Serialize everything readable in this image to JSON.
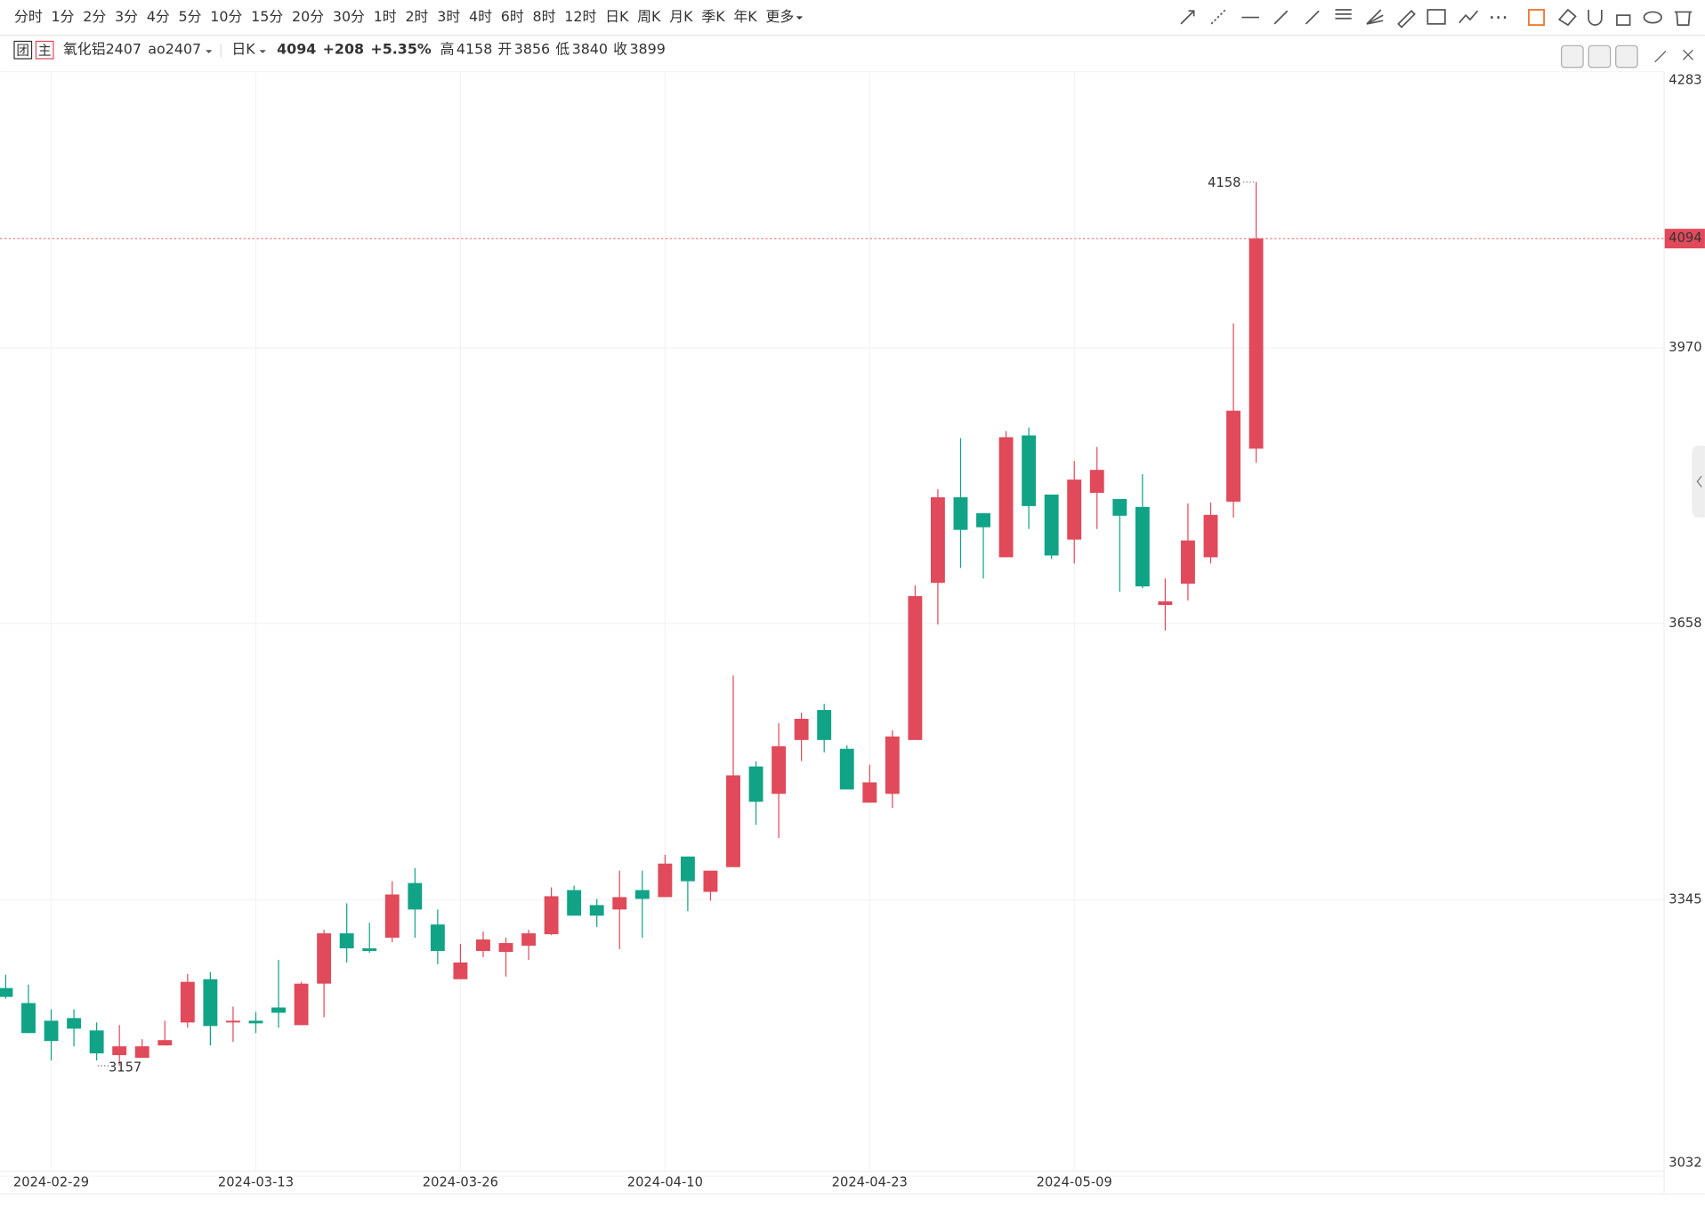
{
  "toolbar": {
    "periods": [
      "分时",
      "1分",
      "2分",
      "3分",
      "4分",
      "5分",
      "10分",
      "15分",
      "20分",
      "30分",
      "1时",
      "2时",
      "3时",
      "4时",
      "6时",
      "8时",
      "12时",
      "日K",
      "周K",
      "月K",
      "季K",
      "年K",
      "更多"
    ],
    "active": 17
  },
  "header": {
    "badges": [
      "团",
      "主"
    ],
    "name": "氧化铝2407",
    "code": "ao2407",
    "period": "日K",
    "change": "+208",
    "change_pct": "+5.35%",
    "high_label": "高",
    "open_label": "开",
    "low_label": "低",
    "prev_close_label": "收"
  },
  "chart_data": {
    "type": "candlestick",
    "categories": [
      null,
      null,
      "2024-02-29",
      null,
      null,
      null,
      null,
      null,
      null,
      null,
      null,
      "2024-03-13",
      null,
      null,
      null,
      null,
      null,
      null,
      null,
      null,
      "2024-03-26",
      null,
      null,
      null,
      null,
      null,
      null,
      null,
      null,
      "2024-04-10",
      null,
      null,
      null,
      null,
      null,
      null,
      null,
      null,
      "2024-04-23",
      null,
      null,
      null,
      null,
      null,
      null,
      null,
      null,
      "2024-05-09",
      null,
      null,
      null,
      null,
      null,
      null,
      null,
      null
    ],
    "open": [
      3245,
      3228,
      3208,
      3211,
      3197,
      3169,
      3166,
      3180,
      3206,
      3255,
      3206,
      3208,
      3223,
      3203,
      3250,
      3307,
      3290,
      3302,
      3364,
      3317,
      3255,
      3287,
      3286,
      3293,
      3306,
      3356,
      3339,
      3334,
      3356,
      3348,
      3394,
      3354,
      3382,
      3496,
      3465,
      3526,
      3560,
      3516,
      3455,
      3465,
      3526,
      3704,
      3801,
      3783,
      3733,
      3871,
      3804,
      3753,
      3806,
      3799,
      3790,
      3679,
      3703,
      3733,
      3796,
      3856
    ],
    "high": [
      3260,
      3249,
      3221,
      3221,
      3206,
      3203,
      3187,
      3208,
      3261,
      3263,
      3224,
      3218,
      3277,
      3252,
      3311,
      3341,
      3319,
      3366,
      3381,
      3334,
      3295,
      3309,
      3302,
      3311,
      3359,
      3361,
      3346,
      3378,
      3378,
      3396,
      3394,
      3378,
      3599,
      3502,
      3545,
      3557,
      3567,
      3520,
      3498,
      3537,
      3701,
      3810,
      3868,
      3783,
      3876,
      3880,
      3804,
      3842,
      3858,
      3799,
      3827,
      3709,
      3794,
      3795,
      3998,
      4158
    ],
    "low": [
      3233,
      3194,
      3163,
      3179,
      3163,
      3157,
      3166,
      3180,
      3200,
      3180,
      3184,
      3194,
      3200,
      3203,
      3212,
      3274,
      3285,
      3297,
      3302,
      3272,
      3255,
      3280,
      3258,
      3277,
      3305,
      3327,
      3314,
      3289,
      3302,
      3348,
      3332,
      3344,
      3382,
      3430,
      3415,
      3502,
      3512,
      3470,
      3455,
      3449,
      3526,
      3657,
      3721,
      3709,
      3733,
      3765,
      3731,
      3726,
      3765,
      3694,
      3698,
      3650,
      3684,
      3726,
      3778,
      3840
    ],
    "close": [
      3235,
      3194,
      3185,
      3199,
      3171,
      3179,
      3179,
      3186,
      3252,
      3202,
      3208,
      3205,
      3217,
      3250,
      3307,
      3290,
      3287,
      3351,
      3334,
      3287,
      3274,
      3300,
      3296,
      3307,
      3349,
      3327,
      3327,
      3348,
      3346,
      3386,
      3366,
      3378,
      3486,
      3456,
      3519,
      3550,
      3526,
      3470,
      3478,
      3530,
      3689,
      3801,
      3764,
      3767,
      3869,
      3791,
      3735,
      3821,
      3832,
      3780,
      3700,
      3683,
      3752,
      3781,
      3899,
      4094
    ],
    "ylim": [
      3032,
      4283
    ],
    "yticks": [
      3032,
      3345,
      3658,
      3970,
      4283
    ],
    "up_color": "#e04a5a",
    "down_color": "#11a386",
    "grid": true
  }
}
